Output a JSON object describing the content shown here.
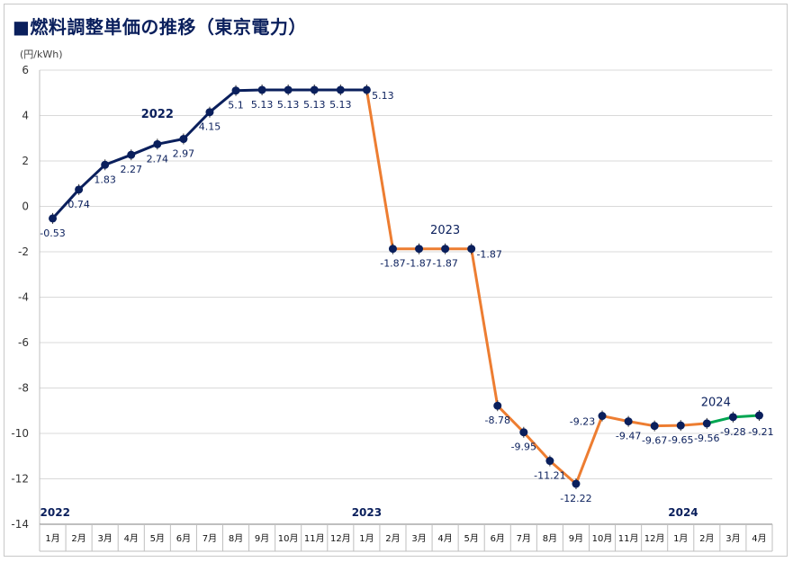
{
  "title": "■燃料調整単価の推移（東京電力）",
  "unit": "(円/kWh)",
  "chart_data": {
    "type": "line",
    "title": "■燃料調整単価の推移（東京電力）",
    "ylabel": "(円/kWh)",
    "ylim": [
      -14,
      6
    ],
    "yticks": [
      6,
      4,
      2,
      0,
      -2,
      -4,
      -6,
      -8,
      -10,
      -12,
      -14
    ],
    "grid": true,
    "categories": [
      "1月",
      "2月",
      "3月",
      "4月",
      "5月",
      "6月",
      "7月",
      "8月",
      "9月",
      "10月",
      "11月",
      "12月",
      "1月",
      "2月",
      "3月",
      "4月",
      "5月",
      "6月",
      "7月",
      "8月",
      "9月",
      "10月",
      "11月",
      "12月",
      "1月",
      "2月",
      "3月",
      "4月"
    ],
    "values": [
      -0.53,
      0.74,
      1.83,
      2.27,
      2.74,
      2.97,
      4.15,
      5.1,
      5.13,
      5.13,
      5.13,
      5.13,
      5.13,
      -1.87,
      -1.87,
      -1.87,
      -1.87,
      -8.78,
      -9.95,
      -11.21,
      -12.22,
      -9.23,
      -9.47,
      -9.67,
      -9.65,
      -9.56,
      -9.28,
      -9.21
    ],
    "value_labels": [
      "-0.53",
      "0.74",
      "1.83",
      "2.27",
      "2.74",
      "2.97",
      "4.15",
      "5.1",
      "5.13",
      "5.13",
      "5.13",
      "5.13",
      "5.13",
      "-1.87",
      "-1.87",
      "-1.87",
      "-1.87",
      "-8.78",
      "-9.95",
      "-11.21",
      "-12.22",
      "-9.23",
      "-9.47",
      "-9.67",
      "-9.65",
      "-9.56",
      "-9.28",
      "-9.21"
    ],
    "segments": [
      {
        "start": 0,
        "end": 12,
        "color": "#0a1f5c"
      },
      {
        "start": 12,
        "end": 25,
        "color": "#ed7d31"
      },
      {
        "start": 25,
        "end": 27,
        "color": "#00a651"
      }
    ],
    "marker_color": "#0a1f5c",
    "line_annotations": [
      {
        "text": "2022",
        "color": "#0a1f5c"
      },
      {
        "text": "2023",
        "color": "#ed7d31"
      },
      {
        "text": "2024",
        "color": "#00a651"
      }
    ],
    "axis_year_labels": [
      "2022",
      "2023",
      "2024"
    ]
  }
}
